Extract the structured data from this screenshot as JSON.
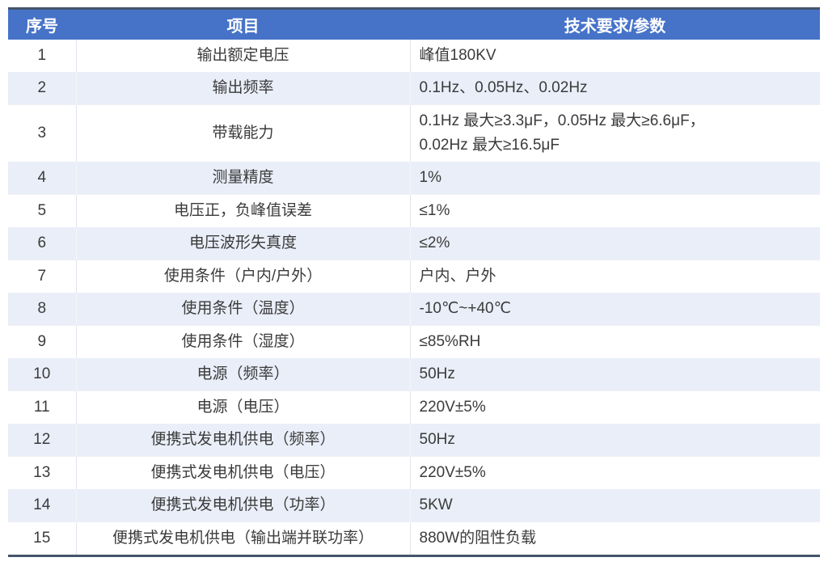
{
  "table": {
    "headers": [
      "序号",
      "项目",
      "技术要求/参数"
    ],
    "rows": [
      {
        "no": "1",
        "item": "输出额定电压",
        "value_lines": [
          "峰值180KV"
        ]
      },
      {
        "no": "2",
        "item": "输出频率",
        "value_lines": [
          "0.1Hz、0.05Hz、0.02Hz"
        ]
      },
      {
        "no": "3",
        "item": "带载能力",
        "value_lines": [
          "0.1Hz 最大≥3.3μF，0.05Hz 最大≥6.6μF，",
          "0.02Hz 最大≥16.5μF"
        ]
      },
      {
        "no": "4",
        "item": "测量精度",
        "value_lines": [
          "1%"
        ]
      },
      {
        "no": "5",
        "item": "电压正，负峰值误差",
        "value_lines": [
          "≤1%"
        ]
      },
      {
        "no": "6",
        "item": "电压波形失真度",
        "value_lines": [
          "≤2%"
        ]
      },
      {
        "no": "7",
        "item": "使用条件（户内/户外）",
        "value_lines": [
          "户内、户外"
        ]
      },
      {
        "no": "8",
        "item": "使用条件（温度）",
        "value_lines": [
          "-10℃~+40℃"
        ]
      },
      {
        "no": "9",
        "item": "使用条件（湿度）",
        "value_lines": [
          "≤85%RH"
        ]
      },
      {
        "no": "10",
        "item": "电源（频率）",
        "value_lines": [
          "50Hz"
        ]
      },
      {
        "no": "11",
        "item": "电源（电压）",
        "value_lines": [
          "220V±5%"
        ]
      },
      {
        "no": "12",
        "item": "便携式发电机供电（频率）",
        "value_lines": [
          "50Hz"
        ]
      },
      {
        "no": "13",
        "item": "便携式发电机供电（电压）",
        "value_lines": [
          "220V±5%"
        ]
      },
      {
        "no": "14",
        "item": "便携式发电机供电（功率）",
        "value_lines": [
          "5KW"
        ]
      },
      {
        "no": "15",
        "item": "便携式发电机供电（输出端并联功率）",
        "value_lines": [
          "880W的阻性负载"
        ]
      }
    ],
    "colors": {
      "header_bg": "#4673C8",
      "header_text": "#FFFFFF",
      "band_bg": "#EAEEF8",
      "frame_border": "#44546A",
      "body_text": "#3B3B3B"
    }
  }
}
